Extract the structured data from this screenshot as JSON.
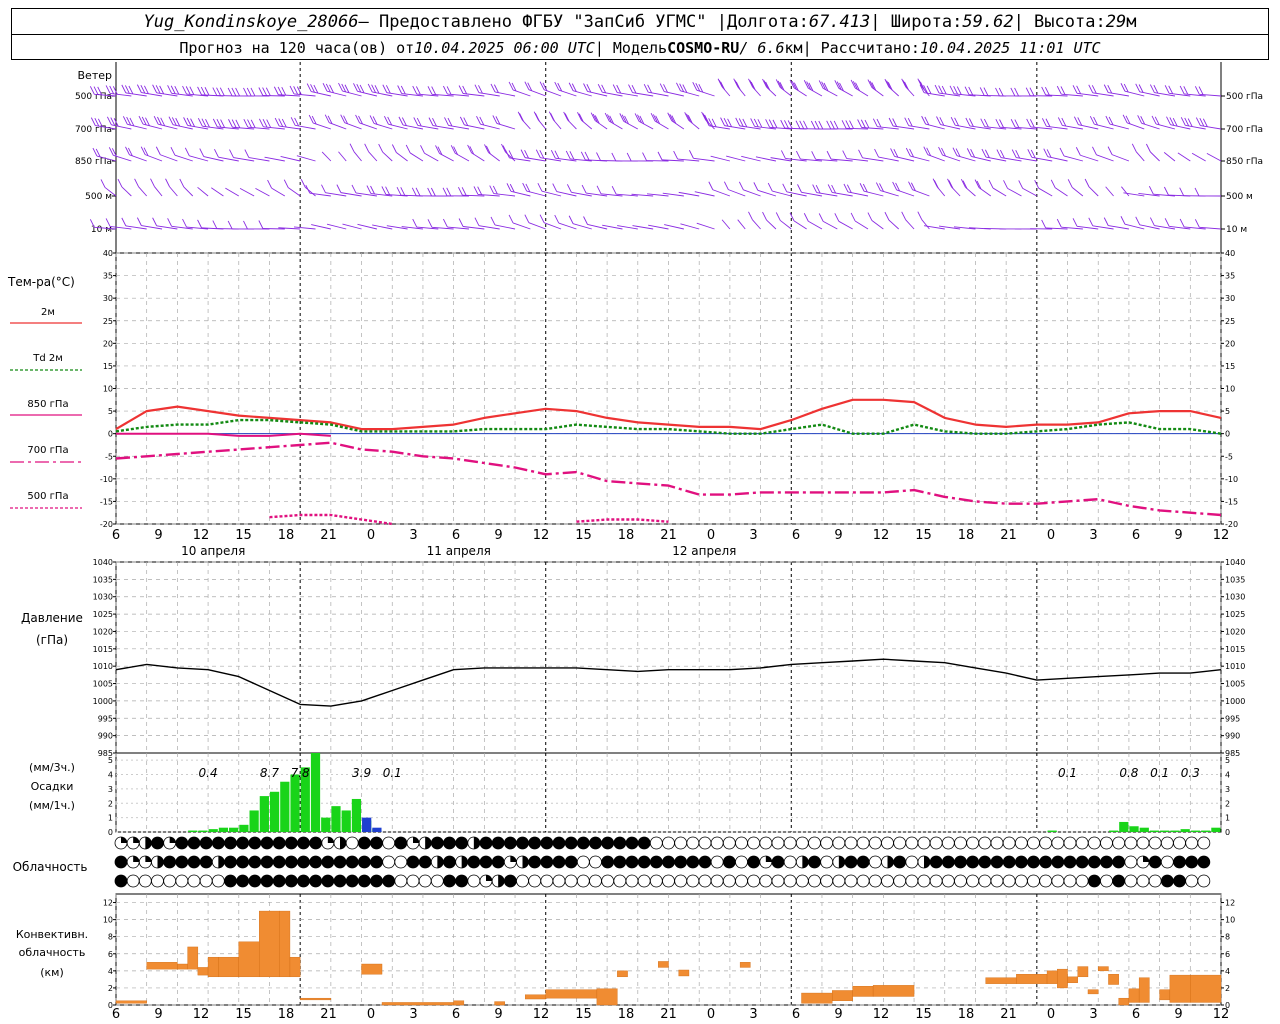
{
  "header": {
    "station": "Yug_Kondinskoye_28066",
    "provider": " – Предоставлено ФГБУ \"ЗапСиб УГМС\" | ",
    "lon_label": "Долгота: ",
    "lon": "67.413",
    "lat_label": " | Широта: ",
    "lat": "59.62",
    "alt_label": " | Высота: ",
    "alt": "29",
    "alt_unit": "м",
    "forecast_label": "Прогноз на 120 часа(ов) от ",
    "forecast_time": "10.04.2025 06:00 UTC",
    "model_label": "  | Модель ",
    "model": "COSMO-RU",
    "model_res": " / 6.6",
    "model_unit": "км",
    "calc_label": " | Рассчитано: ",
    "calc_time": "10.04.2025 11:01 UTC"
  },
  "time_axis": {
    "hour_labels": [
      "6",
      "9",
      "12",
      "15",
      "18",
      "21",
      "0",
      "3",
      "6",
      "9",
      "12",
      "15",
      "18",
      "21",
      "0",
      "3",
      "6",
      "9",
      "12",
      "15",
      "18",
      "21",
      "0",
      "3",
      "6",
      "9",
      "12"
    ],
    "day_labels": [
      "10 апреля",
      "11 апреля",
      "12 апреля"
    ]
  },
  "wind": {
    "title": "Ветер",
    "levels": [
      "500 гПа",
      "700 гПа",
      "850 гПа",
      "500 м",
      "10 м"
    ],
    "color": "#8a2be2"
  },
  "temperature": {
    "title": "Тем-ра(°С)",
    "legend": [
      {
        "label": "2м",
        "color": "#ee3333",
        "style": "solid"
      },
      {
        "label": "Td  2м",
        "color": "#138a13",
        "style": "dotted"
      },
      {
        "label": "850 гПа",
        "color": "#e0107f",
        "style": "solid"
      },
      {
        "label": "700 гПа",
        "color": "#e0107f",
        "style": "dashdot"
      },
      {
        "label": "500 гПа",
        "color": "#e0107f",
        "style": "dotted"
      }
    ],
    "yticks": [
      "40",
      "35",
      "30",
      "25",
      "20",
      "15",
      "10",
      "5",
      "0",
      "-5",
      "-10",
      "-15",
      "-20"
    ]
  },
  "pressure": {
    "title": "Давление",
    "unit": "(гПа)",
    "yticks": [
      "1040",
      "1035",
      "1030",
      "1025",
      "1020",
      "1015",
      "1010",
      "1005",
      "1000",
      "995",
      "990",
      "985"
    ]
  },
  "precip": {
    "title1": "(мм/3ч.)",
    "title2": "Осадки",
    "title3": "(мм/1ч.)",
    "yticks": [
      "5",
      "4",
      "3",
      "2",
      "1",
      "0"
    ],
    "sum_labels": [
      {
        "h": 9,
        "text": "0.4"
      },
      {
        "h": 15,
        "text": "8.7"
      },
      {
        "h": 18,
        "text": "7.8"
      },
      {
        "h": 24,
        "text": "3.9"
      },
      {
        "h": 27,
        "text": "0.1"
      },
      {
        "h": 93,
        "text": "0.1"
      },
      {
        "h": 99,
        "text": "0.8"
      },
      {
        "h": 102,
        "text": "0.1"
      },
      {
        "h": 105,
        "text": "0.3"
      }
    ]
  },
  "cloud": {
    "title": "Облачность"
  },
  "convective": {
    "title1": "Конвективн.",
    "title2": "облачность",
    "title3": "(км)",
    "yticks": [
      "12",
      "10",
      "8",
      "6",
      "4",
      "2",
      "0"
    ]
  },
  "chart_data": [
    {
      "type": "line",
      "name": "Тем-ра(°С)",
      "x_label": "часы от 10.04.2025 06:00 UTC",
      "x": [
        0,
        3,
        6,
        9,
        12,
        15,
        18,
        21,
        24,
        27,
        30,
        33,
        36,
        39,
        42,
        45,
        48,
        51,
        54,
        57,
        60,
        63,
        66,
        69,
        72,
        75,
        78,
        81,
        84,
        87,
        90,
        93,
        96,
        99,
        102,
        105,
        108
      ],
      "ylim": [
        -20,
        40
      ],
      "series": [
        {
          "name": "2м",
          "values": [
            1,
            5,
            6,
            5,
            4,
            3.5,
            3,
            2.5,
            1,
            1,
            1.5,
            2,
            3.5,
            4.5,
            5.5,
            5,
            3.5,
            2.5,
            2,
            1.5,
            1.5,
            1,
            3,
            5.5,
            7.5,
            7.5,
            7,
            3.5,
            2,
            1.5,
            2,
            2,
            2.5,
            4.5,
            5,
            5,
            3.5
          ]
        },
        {
          "name": "Td 2м",
          "values": [
            0.5,
            1.5,
            2,
            2,
            3,
            3,
            2.5,
            2,
            0.5,
            0.5,
            0.5,
            0.5,
            1,
            1,
            1,
            2,
            1.5,
            1,
            1,
            0.5,
            0,
            0,
            1,
            2,
            0,
            0,
            2,
            0.5,
            0,
            0,
            0.5,
            1,
            2,
            2.5,
            1,
            1,
            0
          ]
        },
        {
          "name": "850 гПа",
          "values": [
            0,
            0,
            0,
            0,
            -0.5,
            -0.5,
            0,
            -0.5,
            null,
            null,
            null,
            null,
            null,
            null,
            null,
            null,
            null,
            null,
            null,
            null,
            null,
            null,
            null,
            null,
            null,
            null,
            null,
            null,
            null,
            null,
            null,
            null,
            null,
            null,
            null,
            null,
            null
          ]
        },
        {
          "name": "700 гПа",
          "values": [
            -5.5,
            -5,
            -4.5,
            -4,
            -3.5,
            -3,
            -2.5,
            -2,
            -3.5,
            -4,
            -5,
            -5.5,
            -6.5,
            -7.5,
            -9,
            -8.5,
            -10.5,
            -11,
            -11.5,
            -13.5,
            -13.5,
            -13,
            -13,
            -13,
            -13,
            -13,
            -12.5,
            -14,
            -15,
            -15.5,
            -15.5,
            -15,
            -14.5,
            -16,
            -17,
            -17.5,
            -18
          ]
        },
        {
          "name": "500 гПа",
          "values": [
            null,
            null,
            null,
            null,
            null,
            -18.5,
            -18,
            -18,
            -19,
            -20,
            null,
            null,
            null,
            null,
            null,
            -19.5,
            -19,
            -19,
            -19.5,
            null,
            null,
            null,
            null,
            null,
            null,
            null,
            null,
            null,
            null,
            null,
            null,
            null,
            null,
            null,
            null,
            null,
            null
          ]
        }
      ]
    },
    {
      "type": "line",
      "name": "Давление (гПа)",
      "x_label": "часы от 10.04.2025 06:00 UTC",
      "x": [
        0,
        3,
        6,
        9,
        12,
        15,
        18,
        21,
        24,
        27,
        30,
        33,
        36,
        39,
        42,
        45,
        48,
        51,
        54,
        57,
        60,
        63,
        66,
        69,
        72,
        75,
        78,
        81,
        84,
        87,
        90,
        93,
        96,
        99,
        102,
        105,
        108
      ],
      "ylim": [
        985,
        1040
      ],
      "series": [
        {
          "name": "Давление",
          "values": [
            1009,
            1010.5,
            1009.5,
            1009,
            1007,
            1003,
            999,
            998.5,
            1000,
            1003,
            1006,
            1009,
            1009.5,
            1009.5,
            1009.5,
            1009.5,
            1009,
            1008.5,
            1009,
            1009,
            1009,
            1009.5,
            1010.5,
            1011,
            1011.5,
            1012,
            1011.5,
            1011,
            1009.5,
            1008,
            1006,
            1006.5,
            1007,
            1007.5,
            1008,
            1008,
            1009
          ]
        }
      ]
    },
    {
      "type": "bar",
      "name": "Осадки (мм/1ч.)",
      "x_label": "часы от 10.04.2025 06:00 UTC",
      "x": [
        8,
        9,
        10,
        11,
        12,
        13,
        14,
        15,
        16,
        17,
        18,
        19,
        20,
        21,
        22,
        23,
        24,
        25,
        26,
        92,
        98,
        99,
        100,
        101,
        102,
        103,
        104,
        105,
        106,
        107,
        108
      ],
      "ylim": [
        0,
        5.5
      ],
      "series": [
        {
          "name": "дождь",
          "values": [
            0.1,
            0.1,
            0.2,
            0.3,
            0.3,
            0.5,
            1.5,
            2.5,
            2.8,
            3.5,
            4,
            4.5,
            5.5,
            1,
            1.8,
            1.5,
            2.3,
            0.8,
            0.2,
            0.1,
            0.1,
            0.7,
            0.4,
            0.3,
            0.1,
            0.1,
            0.1,
            0.2,
            0.1,
            0.1,
            0.3
          ]
        },
        {
          "name": "снег",
          "values": [
            0,
            0,
            0,
            0,
            0,
            0,
            0,
            0,
            0,
            0,
            0,
            0,
            0,
            0,
            0,
            0,
            0,
            1,
            0.3,
            0,
            0,
            0,
            0,
            0,
            0,
            0,
            0,
            0,
            0,
            0,
            0
          ]
        }
      ]
    },
    {
      "type": "bar",
      "name": "Конвективн. облачность (км)",
      "x_label": "часы от 10.04.2025 06:00 UTC",
      "segments": [
        {
          "x0": 0,
          "x1": 3,
          "base": 0.2,
          "top": 0.5
        },
        {
          "x0": 3,
          "x1": 6,
          "base": 4.2,
          "top": 5
        },
        {
          "x0": 6,
          "x1": 7,
          "base": 4.2,
          "top": 4.8
        },
        {
          "x0": 7,
          "x1": 8,
          "base": 4.2,
          "top": 6.8
        },
        {
          "x0": 8,
          "x1": 9,
          "base": 3.5,
          "top": 4.4
        },
        {
          "x0": 9,
          "x1": 10,
          "base": 3.3,
          "top": 5.6
        },
        {
          "x0": 10,
          "x1": 12,
          "base": 3.3,
          "top": 5.6
        },
        {
          "x0": 12,
          "x1": 14,
          "base": 3.3,
          "top": 7.4
        },
        {
          "x0": 14,
          "x1": 16,
          "base": 3.3,
          "top": 11
        },
        {
          "x0": 16,
          "x1": 17,
          "base": 3.3,
          "top": 11
        },
        {
          "x0": 17,
          "x1": 18,
          "base": 3.3,
          "top": 5.6
        },
        {
          "x0": 18,
          "x1": 21,
          "base": 0.6,
          "top": 0.8
        },
        {
          "x0": 24,
          "x1": 26,
          "base": 3.6,
          "top": 4.8
        },
        {
          "x0": 26,
          "x1": 33,
          "base": 0,
          "top": 0.3
        },
        {
          "x0": 33,
          "x1": 34,
          "base": 0,
          "top": 0.5
        },
        {
          "x0": 37,
          "x1": 38,
          "base": 0,
          "top": 0.4
        },
        {
          "x0": 40,
          "x1": 42,
          "base": 0.7,
          "top": 1.2
        },
        {
          "x0": 42,
          "x1": 47,
          "base": 0.8,
          "top": 1.8
        },
        {
          "x0": 47,
          "x1": 49,
          "base": 0,
          "top": 1.9
        },
        {
          "x0": 49,
          "x1": 50,
          "base": 3.3,
          "top": 4.0
        },
        {
          "x0": 53,
          "x1": 54,
          "base": 4.4,
          "top": 5.1
        },
        {
          "x0": 55,
          "x1": 56,
          "base": 3.4,
          "top": 4.1
        },
        {
          "x0": 61,
          "x1": 62,
          "base": 4.4,
          "top": 5
        },
        {
          "x0": 67,
          "x1": 70,
          "base": 0.2,
          "top": 1.4
        },
        {
          "x0": 70,
          "x1": 72,
          "base": 0.5,
          "top": 1.7
        },
        {
          "x0": 72,
          "x1": 74,
          "base": 1,
          "top": 2.2
        },
        {
          "x0": 74,
          "x1": 78,
          "base": 1,
          "top": 2.3
        },
        {
          "x0": 85,
          "x1": 88,
          "base": 2.5,
          "top": 3.2
        },
        {
          "x0": 88,
          "x1": 91,
          "base": 2.5,
          "top": 3.6
        },
        {
          "x0": 91,
          "x1": 92,
          "base": 2.5,
          "top": 4
        },
        {
          "x0": 92,
          "x1": 93,
          "base": 2,
          "top": 4.2
        },
        {
          "x0": 93,
          "x1": 94,
          "base": 2.6,
          "top": 3.3
        },
        {
          "x0": 94,
          "x1": 95,
          "base": 3.3,
          "top": 4.5
        },
        {
          "x0": 95,
          "x1": 96,
          "base": 1.3,
          "top": 1.8
        },
        {
          "x0": 96,
          "x1": 97,
          "base": 4,
          "top": 4.5
        },
        {
          "x0": 97,
          "x1": 98,
          "base": 2.4,
          "top": 3.6
        },
        {
          "x0": 98,
          "x1": 99,
          "base": 0,
          "top": 0.8
        },
        {
          "x0": 99,
          "x1": 100,
          "base": 0.3,
          "top": 1.9
        },
        {
          "x0": 100,
          "x1": 101,
          "base": 0.3,
          "top": 3.2
        },
        {
          "x0": 102,
          "x1": 103,
          "base": 0.6,
          "top": 1.8
        },
        {
          "x0": 103,
          "x1": 105,
          "base": 0.3,
          "top": 3.5
        },
        {
          "x0": 105,
          "x1": 108,
          "base": 0.3,
          "top": 3.5
        }
      ]
    }
  ]
}
